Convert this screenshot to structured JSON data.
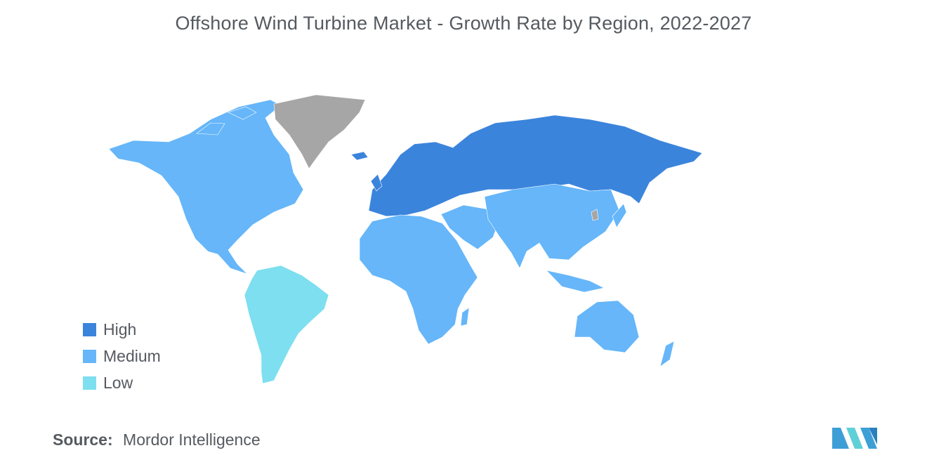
{
  "title": "Offshore Wind Turbine Market - Growth Rate by Region, 2022-2027",
  "legend": [
    {
      "label": "High",
      "color": "#3b84dc"
    },
    {
      "label": "Medium",
      "color": "#66b6f9"
    },
    {
      "label": "Low",
      "color": "#7ddfef"
    }
  ],
  "no_data_color": "#a6a6a6",
  "regions": {
    "Europe": "High",
    "Russia": "High",
    "North America": "Medium",
    "Africa": "Medium",
    "Middle East": "Medium",
    "Asia-Pacific": "Medium",
    "South America": "Low",
    "Greenland": "No data"
  },
  "source": {
    "label": "Source:",
    "value": "Mordor Intelligence"
  },
  "logo_icon": "mordor-intelligence-logo-icon"
}
